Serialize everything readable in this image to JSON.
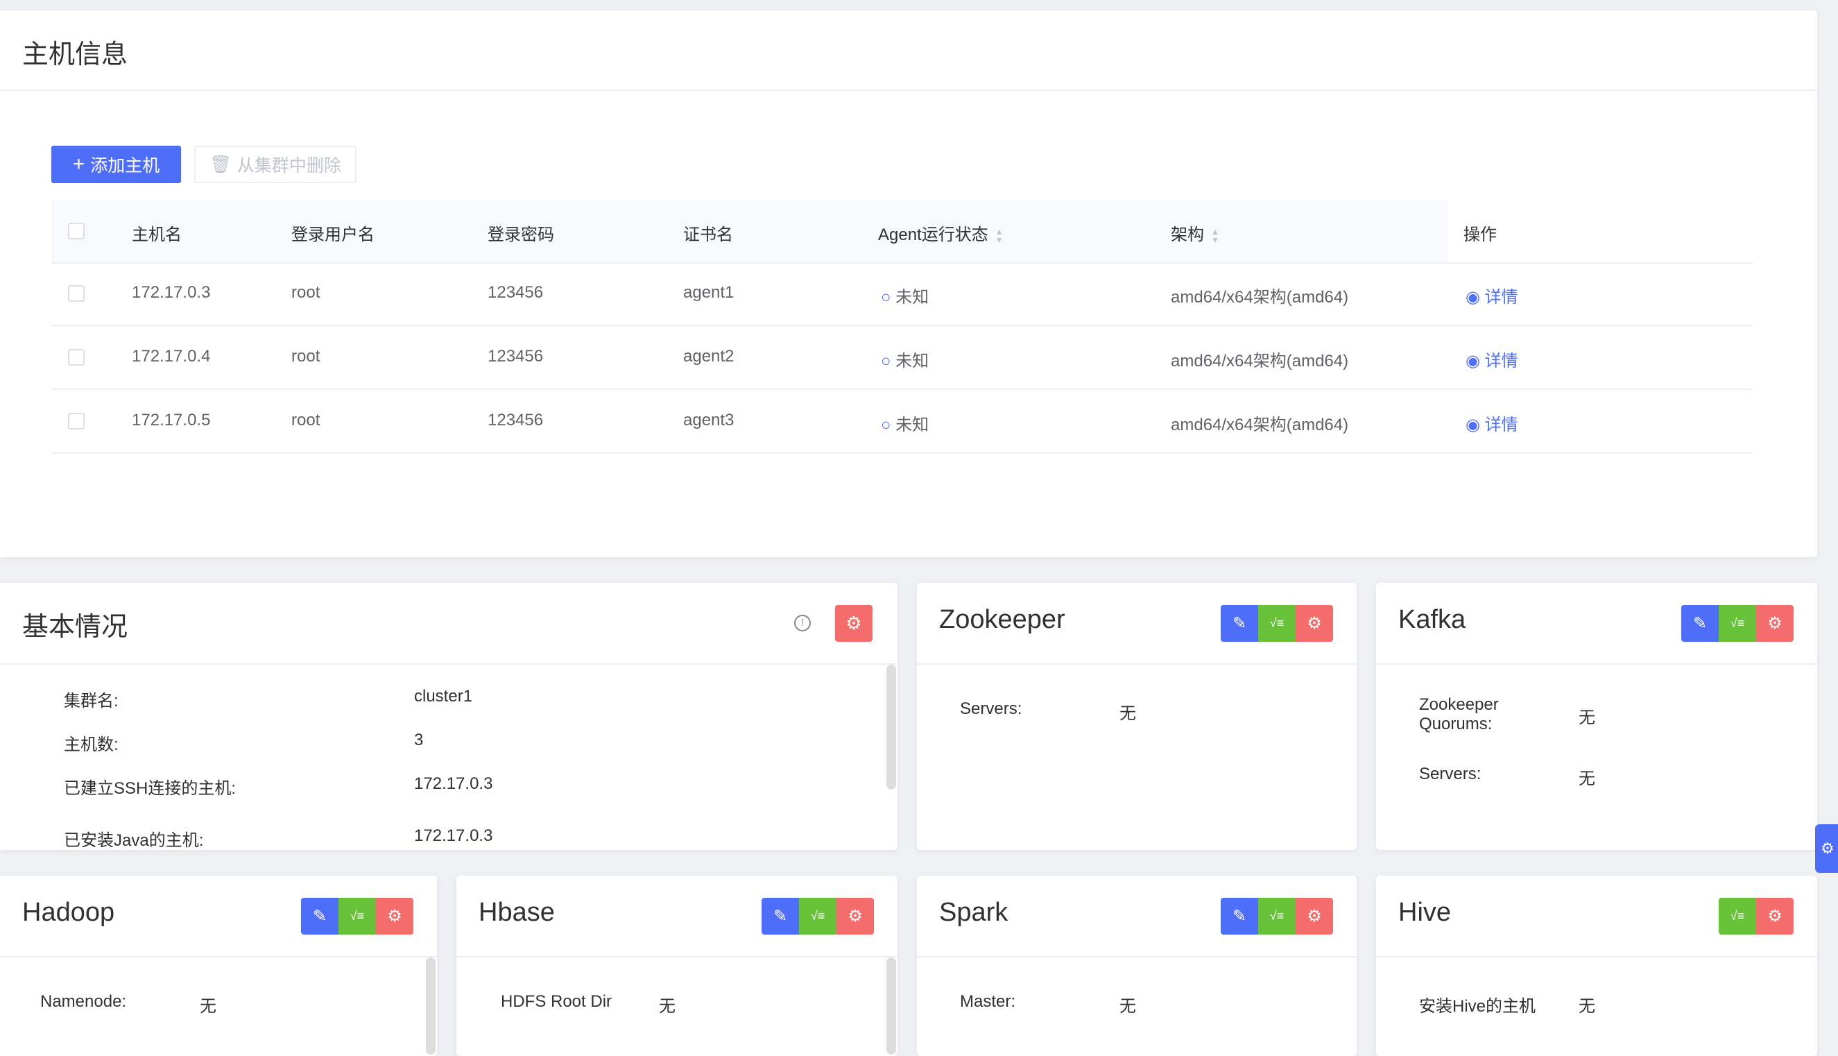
{
  "host_panel": {
    "title": "主机信息",
    "add_button": "添加主机",
    "remove_button": "从集群中删除",
    "columns": [
      "主机名",
      "登录用户名",
      "登录密码",
      "证书名",
      "Agent运行状态",
      "架构",
      "操作"
    ],
    "rows": [
      {
        "host": "172.17.0.3",
        "user": "root",
        "password": "123456",
        "cert": "agent1",
        "status": "未知",
        "arch": "amd64/x64架构(amd64)",
        "action": "详情"
      },
      {
        "host": "172.17.0.4",
        "user": "root",
        "password": "123456",
        "cert": "agent2",
        "status": "未知",
        "arch": "amd64/x64架构(amd64)",
        "action": "详情"
      },
      {
        "host": "172.17.0.5",
        "user": "root",
        "password": "123456",
        "cert": "agent3",
        "status": "未知",
        "arch": "amd64/x64架构(amd64)",
        "action": "详情"
      }
    ]
  },
  "basic": {
    "title": "基本情况",
    "items": [
      {
        "label": "集群名:",
        "value": "cluster1"
      },
      {
        "label": "主机数:",
        "value": "3"
      },
      {
        "label": "已建立SSH连接的主机:",
        "value": "172.17.0.3"
      },
      {
        "label": "已安装Java的主机:",
        "value": "172.17.0.3"
      }
    ]
  },
  "zookeeper": {
    "title": "Zookeeper",
    "items": [
      {
        "label": "Servers:",
        "value": "无"
      }
    ]
  },
  "kafka": {
    "title": "Kafka",
    "items": [
      {
        "label": "Zookeeper Quorums:",
        "value": "无"
      },
      {
        "label": "Servers:",
        "value": "无"
      }
    ]
  },
  "hadoop": {
    "title": "Hadoop",
    "items": [
      {
        "label": "Namenode:",
        "value": "无"
      }
    ]
  },
  "hbase": {
    "title": "Hbase",
    "items": [
      {
        "label": "HDFS Root Dir",
        "value": "无"
      }
    ]
  },
  "spark": {
    "title": "Spark",
    "items": [
      {
        "label": "Master:",
        "value": "无"
      }
    ]
  },
  "hive": {
    "title": "Hive",
    "items": [
      {
        "label": "安装Hive的主机",
        "value": "无"
      }
    ]
  },
  "colors": {
    "primary": "#4f6ef7",
    "success": "#67c23a",
    "danger": "#f56c6c"
  }
}
